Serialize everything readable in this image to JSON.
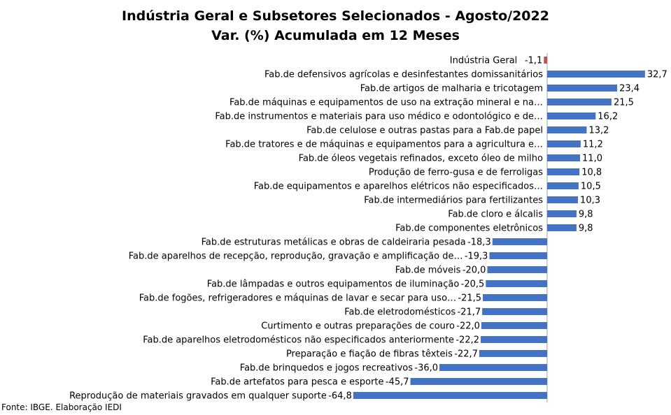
{
  "chart_data": {
    "type": "bar",
    "orientation": "horizontal",
    "title": "Indústria Geral e Subsetores Selecionados - Agosto/2022",
    "subtitle": "Var. (%) Acumulada em 12 Meses",
    "categories": [
      "Indústria Geral",
      "Fab.de defensivos agrícolas e desinfestantes domissanitários",
      "Fab.de artigos de malharia e tricotagem",
      "Fab.de máquinas e equipamentos de uso na extração mineral e na…",
      "Fab.de instrumentos e materiais para uso médico e odontológico e de…",
      "Fab.de celulose e outras pastas para a Fab.de papel",
      "Fab.de tratores e de máquinas e equipamentos para a agricultura e…",
      "Fab.de óleos vegetais refinados, exceto óleo de milho",
      "Produção de ferro-gusa e de ferroligas",
      "Fab.de equipamentos e aparelhos elétricos não especificados…",
      "Fab.de intermediários para fertilizantes",
      "Fab.de cloro e álcalis",
      "Fab.de componentes eletrônicos",
      "Fab.de estruturas metálicas e obras de caldeiraria pesada",
      "Fab.de aparelhos de recepção, reprodução, gravação e amplificação de…",
      "Fab.de móveis",
      "Fab.de lâmpadas e outros equipamentos de iluminação",
      "Fab.de fogões, refrigeradores e máquinas de lavar e secar para uso…",
      "Fab.de eletrodomésticos",
      "Curtimento e outras preparações de couro",
      "Fab.de aparelhos eletrodomésticos não especificados anteriormente",
      "Preparação e fiação de fibras têxteis",
      "Fab.de brinquedos e jogos recreativos",
      "Fab.de artefatos para pesca e esporte",
      "Reprodução de materiais gravados em qualquer suporte"
    ],
    "values": [
      -1.1,
      32.7,
      23.4,
      21.5,
      16.2,
      13.2,
      11.2,
      11.0,
      10.8,
      10.5,
      10.3,
      9.8,
      9.8,
      -18.3,
      -19.3,
      -20.0,
      -20.5,
      -21.5,
      -21.7,
      -22.0,
      -22.2,
      -22.7,
      -36.0,
      -45.7,
      -64.8
    ],
    "value_labels": [
      "-1,1",
      "32,7",
      "23,4",
      "21,5",
      "16,2",
      "13,2",
      "11,2",
      "11,0",
      "10,8",
      "10,5",
      "10,3",
      "9,8",
      "9,8",
      "-18,3",
      "-19,3",
      "-20,0",
      "-20,5",
      "-21,5",
      "-21,7",
      "-22,0",
      "-22,2",
      "-22,7",
      "-36,0",
      "-45,7",
      "-64,8"
    ],
    "xlim": [
      -64.8,
      32.7
    ],
    "highlight_index": 0,
    "colors": {
      "bar": "#4472C4",
      "highlight": "#C0504D",
      "axis": "#A6A6A6"
    },
    "grid": false,
    "legend": "none"
  },
  "source": "Fonte: IBGE. Elaboração IEDI"
}
